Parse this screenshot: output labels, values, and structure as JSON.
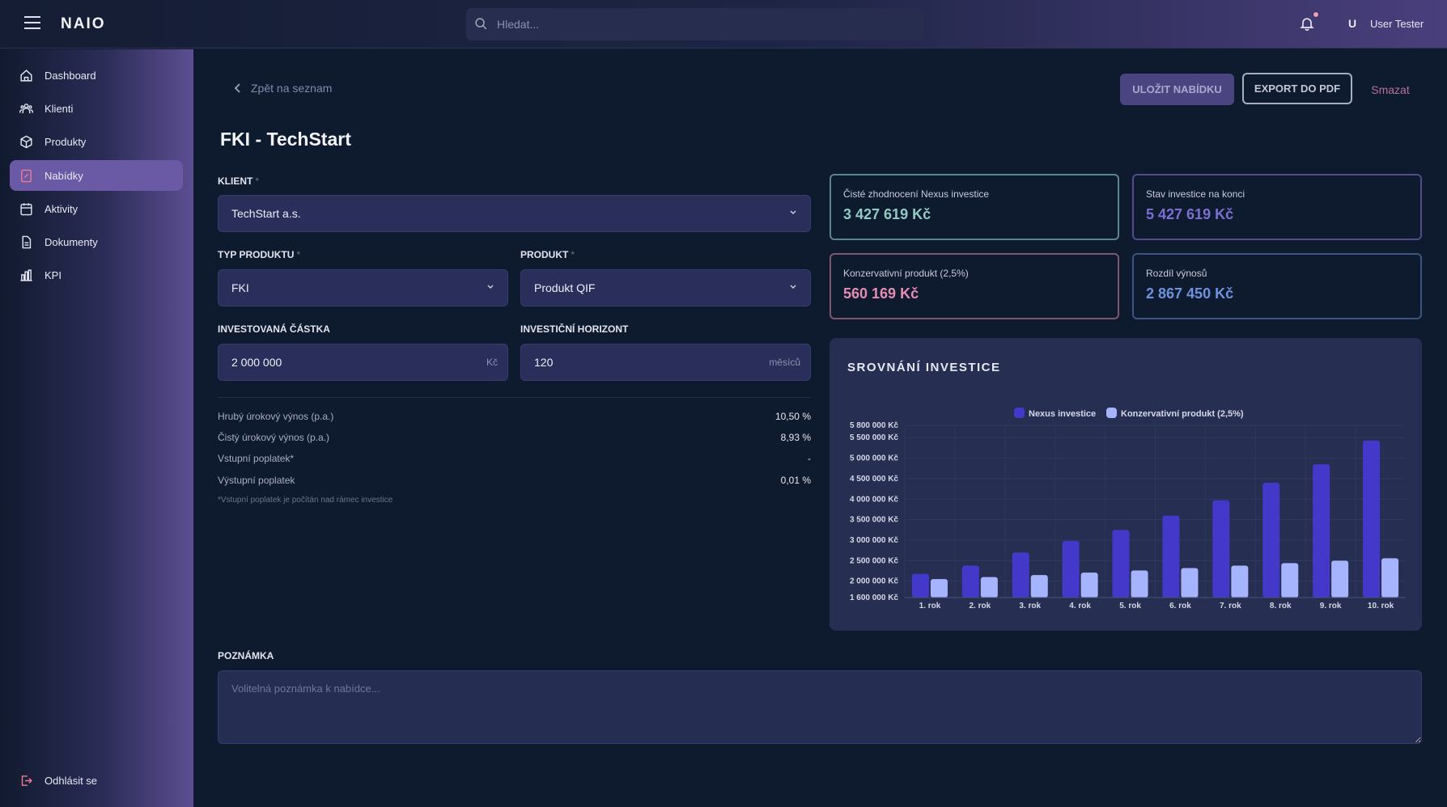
{
  "header": {
    "logo": "NAIO",
    "search_placeholder": "Hledat...",
    "user_initial": "U",
    "user_name": "User Tester"
  },
  "sidebar": {
    "items": [
      {
        "label": "Dashboard",
        "icon": "home-icon"
      },
      {
        "label": "Klienti",
        "icon": "users-icon"
      },
      {
        "label": "Produkty",
        "icon": "box-icon"
      },
      {
        "label": "Nabídky",
        "icon": "document-icon",
        "active": true
      },
      {
        "label": "Aktivity",
        "icon": "calendar-icon"
      },
      {
        "label": "Dokumenty",
        "icon": "file-icon"
      },
      {
        "label": "KPI",
        "icon": "bar-chart-icon"
      }
    ],
    "logout": "Odhlásit se"
  },
  "toolbar": {
    "back": "Zpět na seznam",
    "save": "ULOŽIT NABÍDKU",
    "export": "EXPORT DO PDF",
    "delete": "Smazat"
  },
  "page_title": "FKI - TechStart",
  "form": {
    "client_label": "KLIENT",
    "client_value": "TechStart a.s.",
    "type_label": "TYP PRODUKTU",
    "type_value": "FKI",
    "product_label": "PRODUKT",
    "product_value": "Produkt QIF",
    "amount_label": "INVESTOVANÁ ČÁSTKA",
    "amount_value": "2 000 000",
    "amount_unit": "Kč",
    "horizon_label": "INVESTIČNÍ HORIZONT",
    "horizon_value": "120",
    "horizon_unit": "měsíců",
    "required_mark": "*"
  },
  "fees": [
    {
      "label": "Hrubý úrokový výnos (p.a.)",
      "value": "10,50 %"
    },
    {
      "label": "Čistý úrokový výnos (p.a.)",
      "value": "8,93 %"
    },
    {
      "label": "Vstupní poplatek*",
      "value": "-"
    },
    {
      "label": "Výstupní poplatek",
      "value": "0,01 %"
    }
  ],
  "fee_note": "*Vstupní poplatek je počítán nad rámec investice",
  "cards": [
    {
      "title": "Čisté zhodnocení Nexus investice",
      "value": "3 427 619 Kč",
      "border": "#5a8589",
      "color": "#92cbc5"
    },
    {
      "title": "Stav investice na konci",
      "value": "5 427 619 Kč",
      "border": "#514d8c",
      "color": "#7c6fd3"
    },
    {
      "title": "Konzervativní produkt (2,5%)",
      "value": "560 169 Kč",
      "border": "#80576f",
      "color": "#e58db2"
    },
    {
      "title": "Rozdíl výnosů",
      "value": "2 867 450 Kč",
      "border": "#3b5482",
      "color": "#6f92dc"
    }
  ],
  "note": {
    "label": "POZNÁMKA",
    "placeholder": "Volitelná poznámka k nabídce..."
  },
  "chart_data": {
    "type": "bar",
    "title": "SROVNÁNÍ INVESTICE",
    "categories": [
      "1. rok",
      "2. rok",
      "3. rok",
      "4. rok",
      "5. rok",
      "6. rok",
      "7. rok",
      "8. rok",
      "9. rok",
      "10. rok"
    ],
    "series": [
      {
        "name": "Nexus investice",
        "color": "#4338ca",
        "values": [
          2180000,
          2380000,
          2700000,
          2980000,
          3250000,
          3600000,
          3970000,
          4400000,
          4850000,
          5430000
        ]
      },
      {
        "name": "Konzervativní produkt (2,5%)",
        "color": "#a5b4fc",
        "values": [
          2050000,
          2100000,
          2150000,
          2210000,
          2260000,
          2320000,
          2380000,
          2440000,
          2500000,
          2560000
        ]
      }
    ],
    "ylim": [
      1600000,
      5800000
    ],
    "yticks": [
      1600000,
      2000000,
      2500000,
      3000000,
      3500000,
      4000000,
      4500000,
      5000000,
      5500000,
      5800000
    ],
    "ytick_labels": [
      "1 600 000 Kč",
      "2 000 000 Kč",
      "2 500 000 Kč",
      "3 000 000 Kč",
      "3 500 000 Kč",
      "4 000 000 Kč",
      "4 500 000 Kč",
      "5 000 000 Kč",
      "5 500 000 Kč",
      "5 800 000 Kč"
    ],
    "legend": "top",
    "grid": true
  }
}
